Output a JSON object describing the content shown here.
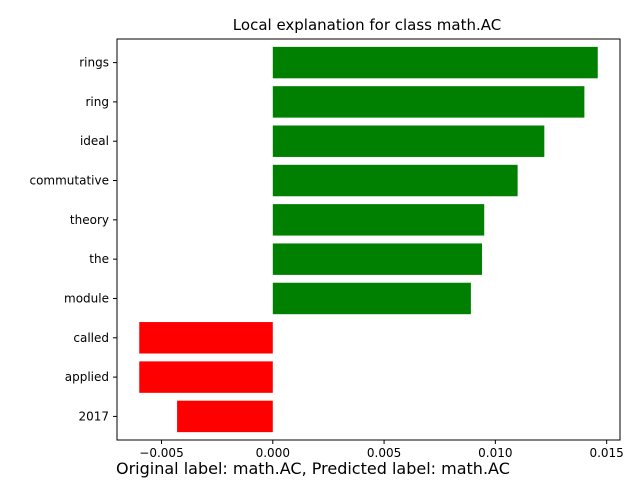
{
  "chart_data": {
    "type": "bar",
    "orientation": "horizontal",
    "title": "Local explanation for class math.AC",
    "categories": [
      "rings",
      "ring",
      "ideal",
      "commutative",
      "theory",
      "the",
      "module",
      "called",
      "applied",
      "2017"
    ],
    "values": [
      0.0146,
      0.014,
      0.0122,
      0.011,
      0.0095,
      0.0094,
      0.0089,
      -0.006,
      -0.006,
      -0.0043
    ],
    "xlim": [
      -0.007,
      0.0156
    ],
    "xticks": [
      -0.005,
      0.0,
      0.005,
      0.01,
      0.015
    ],
    "xtick_labels": [
      "−0.005",
      "0.000",
      "0.005",
      "0.010",
      "0.015"
    ],
    "colors": {
      "positive": "#008000",
      "negative": "#ff0000"
    },
    "grid": false
  },
  "caption": "Original label: math.AC, Predicted label: math.AC"
}
